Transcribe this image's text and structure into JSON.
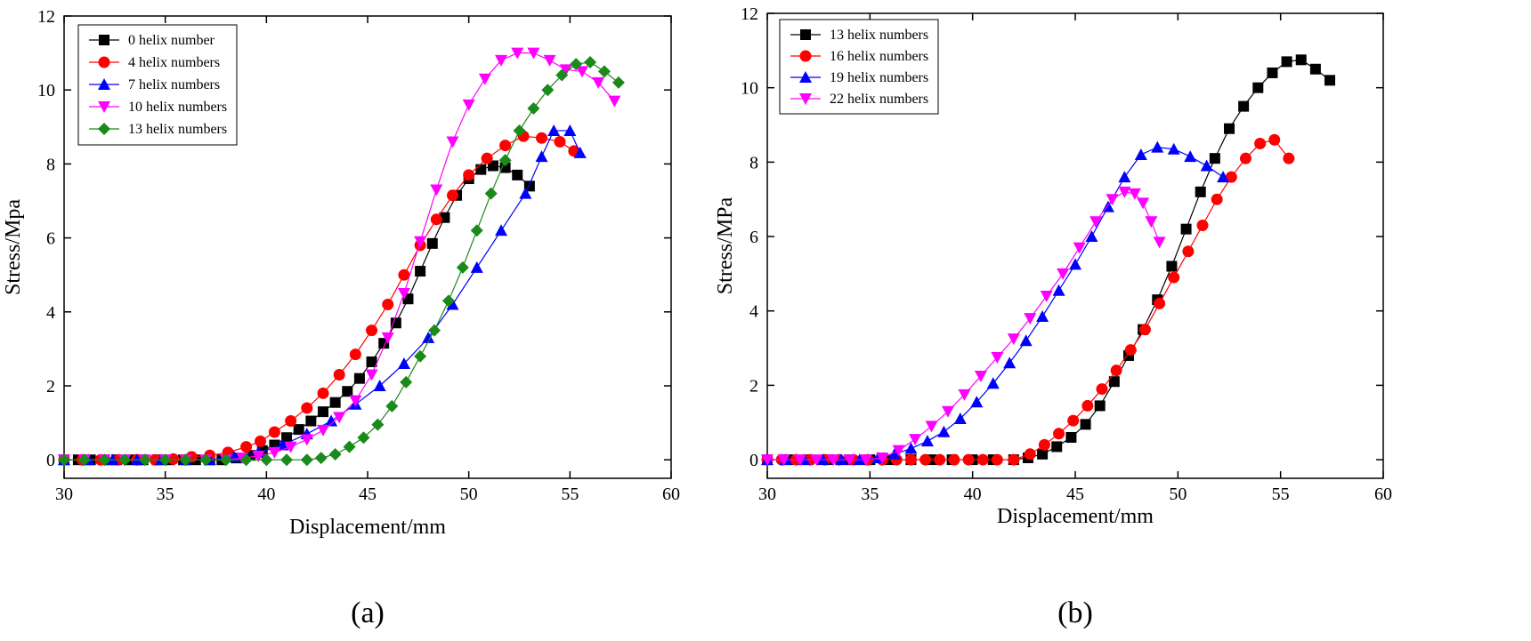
{
  "chart_data": [
    {
      "type": "line",
      "panel_label": "(a)",
      "xlabel": "Displacement/mm",
      "ylabel": "Stress/Mpa",
      "xlim": [
        30,
        60
      ],
      "ylim": [
        -0.5,
        12
      ],
      "xticks": [
        30,
        35,
        40,
        45,
        50,
        55,
        60
      ],
      "yticks": [
        0,
        2,
        4,
        6,
        8,
        10,
        12
      ],
      "grid": false,
      "legend_position": "top-left",
      "series": [
        {
          "name": "0 helix number",
          "color": "#000000",
          "marker": "square",
          "x": [
            30,
            30.7,
            31.3,
            32,
            32.6,
            33.3,
            33.9,
            34.6,
            35.2,
            35.9,
            36.5,
            37.2,
            37.8,
            38.5,
            39.2,
            39.8,
            40.4,
            41,
            41.6,
            42.2,
            42.8,
            43.4,
            44,
            44.6,
            45.2,
            45.8,
            46.4,
            47,
            47.6,
            48.2,
            48.8,
            49.4,
            50,
            50.6,
            51.2,
            51.8,
            52.4,
            53
          ],
          "y": [
            0,
            0,
            0,
            0,
            0,
            0,
            0,
            0,
            0,
            0,
            0,
            0,
            0,
            0.05,
            0.12,
            0.25,
            0.4,
            0.6,
            0.82,
            1.05,
            1.3,
            1.55,
            1.85,
            2.2,
            2.65,
            3.15,
            3.7,
            4.35,
            5.1,
            5.85,
            6.55,
            7.15,
            7.6,
            7.85,
            7.95,
            7.9,
            7.7,
            7.4
          ]
        },
        {
          "name": "4 helix numbers",
          "color": "#ff0000",
          "marker": "circle",
          "x": [
            30,
            30.9,
            31.8,
            32.7,
            33.6,
            34.5,
            35.4,
            36.3,
            37.2,
            38.1,
            39,
            39.7,
            40.4,
            41.2,
            42,
            42.8,
            43.6,
            44.4,
            45.2,
            46,
            46.8,
            47.6,
            48.4,
            49.2,
            50,
            50.9,
            51.8,
            52.7,
            53.6,
            54.5,
            55.2
          ],
          "y": [
            0,
            0,
            0,
            0,
            0,
            0,
            0.02,
            0.08,
            0.12,
            0.2,
            0.35,
            0.5,
            0.75,
            1.05,
            1.4,
            1.8,
            2.3,
            2.85,
            3.5,
            4.2,
            5,
            5.8,
            6.5,
            7.15,
            7.7,
            8.15,
            8.5,
            8.75,
            8.7,
            8.6,
            8.35
          ]
        },
        {
          "name": "7 helix numbers",
          "color": "#0000ff",
          "marker": "triangle-up",
          "x": [
            30,
            31.2,
            32.4,
            33.6,
            34.8,
            36,
            37.2,
            38.4,
            39.6,
            40.8,
            42,
            43.2,
            44.4,
            45.6,
            46.8,
            48,
            49.2,
            50.4,
            51.6,
            52.8,
            53.6,
            54.2,
            55,
            55.5
          ],
          "y": [
            0,
            0,
            0,
            0,
            0,
            0,
            0,
            0.08,
            0.2,
            0.4,
            0.7,
            1.05,
            1.5,
            2,
            2.6,
            3.3,
            4.2,
            5.2,
            6.2,
            7.2,
            8.2,
            8.9,
            8.9,
            8.3
          ]
        },
        {
          "name": "10 helix numbers",
          "color": "#ff00ff",
          "marker": "triangle-down",
          "x": [
            30,
            31,
            32,
            33,
            34,
            35,
            36,
            37,
            38,
            38.8,
            39.6,
            40.4,
            41.2,
            42,
            42.8,
            43.6,
            44.4,
            45.2,
            46,
            46.8,
            47.6,
            48.4,
            49.2,
            50,
            50.8,
            51.6,
            52.4,
            53.2,
            54,
            54.8,
            55.6,
            56.4,
            57.2
          ],
          "y": [
            0,
            0,
            0,
            0,
            0,
            0,
            0,
            0,
            0,
            0.05,
            0.1,
            0.2,
            0.35,
            0.55,
            0.8,
            1.15,
            1.6,
            2.3,
            3.3,
            4.5,
            5.9,
            7.3,
            8.6,
            9.6,
            10.3,
            10.8,
            11,
            11,
            10.8,
            10.55,
            10.5,
            10.2,
            9.7
          ]
        },
        {
          "name": "13 helix numbers",
          "color": "#1a8a1a",
          "marker": "diamond",
          "x": [
            30,
            31,
            32,
            33,
            34,
            35,
            36,
            37,
            38,
            39,
            40,
            41,
            42,
            42.7,
            43.4,
            44.1,
            44.8,
            45.5,
            46.2,
            46.9,
            47.6,
            48.3,
            49,
            49.7,
            50.4,
            51.1,
            51.8,
            52.5,
            53.2,
            53.9,
            54.6,
            55.3,
            56,
            56.7,
            57.4
          ],
          "y": [
            0,
            0,
            0,
            0,
            0,
            0,
            0,
            0,
            0,
            0,
            0,
            0,
            0,
            0.05,
            0.15,
            0.35,
            0.6,
            0.95,
            1.45,
            2.1,
            2.8,
            3.5,
            4.3,
            5.2,
            6.2,
            7.2,
            8.1,
            8.9,
            9.5,
            10,
            10.4,
            10.7,
            10.75,
            10.5,
            10.2
          ]
        }
      ]
    },
    {
      "type": "line",
      "panel_label": "(b)",
      "xlabel": "Displacement/mm",
      "ylabel": "Stress/MPa",
      "xlim": [
        30,
        60
      ],
      "ylim": [
        -0.5,
        12
      ],
      "xticks": [
        30,
        35,
        40,
        45,
        50,
        55,
        60
      ],
      "yticks": [
        0,
        2,
        4,
        6,
        8,
        10,
        12
      ],
      "grid": false,
      "legend_position": "top-left",
      "series": [
        {
          "name": "13 helix numbers",
          "color": "#000000",
          "marker": "square",
          "x": [
            30,
            31,
            32,
            33,
            34,
            35,
            36,
            37,
            38,
            39,
            40,
            41,
            42,
            42.7,
            43.4,
            44.1,
            44.8,
            45.5,
            46.2,
            46.9,
            47.6,
            48.3,
            49,
            49.7,
            50.4,
            51.1,
            51.8,
            52.5,
            53.2,
            53.9,
            54.6,
            55.3,
            56,
            56.7,
            57.4
          ],
          "y": [
            0,
            0,
            0,
            0,
            0,
            0,
            0,
            0,
            0,
            0,
            0,
            0,
            0,
            0.05,
            0.15,
            0.35,
            0.6,
            0.95,
            1.45,
            2.1,
            2.8,
            3.5,
            4.3,
            5.2,
            6.2,
            7.2,
            8.1,
            8.9,
            9.5,
            10,
            10.4,
            10.7,
            10.75,
            10.5,
            10.2
          ]
        },
        {
          "name": "16 helix numbers",
          "color": "#ff0000",
          "marker": "circle",
          "x": [
            30,
            30.7,
            31.4,
            32.1,
            32.8,
            33.5,
            34.2,
            34.9,
            35.6,
            36.3,
            37,
            37.7,
            38.4,
            39.1,
            39.8,
            40.5,
            41.2,
            42,
            42.8,
            43.5,
            44.2,
            44.9,
            45.6,
            46.3,
            47,
            47.7,
            48.4,
            49.1,
            49.8,
            50.5,
            51.2,
            51.9,
            52.6,
            53.3,
            54,
            54.7,
            55.4
          ],
          "y": [
            0,
            0,
            0,
            0,
            0,
            0,
            0,
            0,
            0,
            0,
            0,
            0,
            0,
            0,
            0,
            0,
            0,
            0,
            0.15,
            0.4,
            0.7,
            1.05,
            1.45,
            1.9,
            2.4,
            2.95,
            3.5,
            4.2,
            4.9,
            5.6,
            6.3,
            7,
            7.6,
            8.1,
            8.5,
            8.6,
            8.1
          ]
        },
        {
          "name": "19 helix numbers",
          "color": "#0000ff",
          "marker": "triangle-up",
          "x": [
            30,
            30.9,
            31.8,
            32.7,
            33.6,
            34.5,
            35.4,
            36.2,
            37,
            37.8,
            38.6,
            39.4,
            40.2,
            41,
            41.8,
            42.6,
            43.4,
            44.2,
            45,
            45.8,
            46.6,
            47.4,
            48.2,
            49,
            49.8,
            50.6,
            51.4,
            52.2
          ],
          "y": [
            0,
            0,
            0,
            0,
            0,
            0,
            0.05,
            0.15,
            0.3,
            0.5,
            0.75,
            1.1,
            1.55,
            2.05,
            2.6,
            3.2,
            3.85,
            4.55,
            5.25,
            6,
            6.8,
            7.6,
            8.2,
            8.4,
            8.35,
            8.15,
            7.9,
            7.6
          ]
        },
        {
          "name": "22 helix numbers",
          "color": "#ff00ff",
          "marker": "triangle-down",
          "x": [
            30,
            30.8,
            31.6,
            32.4,
            33.2,
            34,
            34.8,
            35.6,
            36.4,
            37.2,
            38,
            38.8,
            39.6,
            40.4,
            41.2,
            42,
            42.8,
            43.6,
            44.4,
            45.2,
            46,
            46.8,
            47.4,
            47.9,
            48.3,
            48.7,
            49.1
          ],
          "y": [
            0,
            0,
            0,
            0,
            0,
            0,
            0,
            0.05,
            0.25,
            0.55,
            0.9,
            1.3,
            1.75,
            2.25,
            2.75,
            3.25,
            3.8,
            4.4,
            5,
            5.7,
            6.4,
            7,
            7.2,
            7.15,
            6.9,
            6.4,
            5.85
          ]
        }
      ]
    }
  ]
}
